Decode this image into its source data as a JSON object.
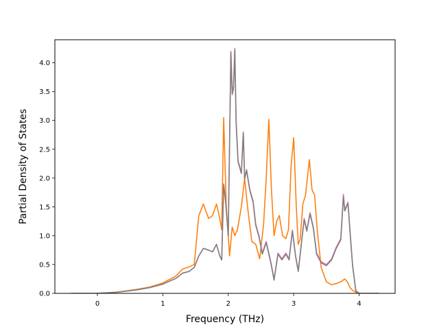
{
  "chart_data": {
    "type": "line",
    "title": "",
    "xlabel": "Frequency (THz)",
    "ylabel": "Partial Density of States",
    "xlim": [
      -0.65,
      4.55
    ],
    "ylim": [
      0,
      4.4
    ],
    "xticks": [
      0,
      1,
      2,
      3,
      4
    ],
    "yticks": [
      0.0,
      0.5,
      1.0,
      1.5,
      2.0,
      2.5,
      3.0,
      3.5,
      4.0
    ],
    "xtick_labels": [
      "0",
      "1",
      "2",
      "3",
      "4"
    ],
    "ytick_labels": [
      "0.0",
      "0.5",
      "1.0",
      "1.5",
      "2.0",
      "2.5",
      "3.0",
      "3.5",
      "4.0"
    ],
    "grid": false,
    "legend": "none",
    "series": [
      {
        "color": "#e377c2",
        "x": [
          -0.4,
          0.0,
          0.3,
          0.6,
          0.8,
          1.0,
          1.2,
          1.3,
          1.4,
          1.48,
          1.55,
          1.62,
          1.7,
          1.76,
          1.82,
          1.87,
          1.9,
          1.93,
          1.96,
          2.0,
          2.04,
          2.06,
          2.08,
          2.1,
          2.12,
          2.15,
          2.2,
          2.23,
          2.25,
          2.28,
          2.33,
          2.38,
          2.42,
          2.47,
          2.52,
          2.58,
          2.65,
          2.7,
          2.76,
          2.82,
          2.88,
          2.93,
          2.98,
          3.03,
          3.07,
          3.12,
          3.16,
          3.2,
          3.25,
          3.3,
          3.35,
          3.42,
          3.5,
          3.58,
          3.65,
          3.72,
          3.76,
          3.78,
          3.8,
          3.83,
          3.86,
          3.9,
          3.95,
          4.0,
          4.3
        ],
        "y": [
          0.0,
          0.0,
          0.02,
          0.06,
          0.1,
          0.16,
          0.26,
          0.35,
          0.38,
          0.45,
          0.65,
          0.78,
          0.75,
          0.72,
          0.85,
          0.65,
          0.58,
          1.9,
          1.6,
          1.0,
          4.2,
          3.5,
          3.6,
          4.25,
          3.0,
          2.3,
          2.1,
          2.8,
          2.0,
          2.15,
          1.8,
          1.6,
          1.2,
          1.0,
          0.7,
          0.9,
          0.55,
          0.25,
          0.7,
          0.6,
          0.7,
          0.6,
          1.1,
          0.65,
          0.4,
          0.9,
          1.3,
          1.1,
          1.4,
          1.15,
          0.7,
          0.55,
          0.5,
          0.6,
          0.8,
          0.95,
          1.72,
          1.45,
          1.5,
          1.58,
          1.1,
          0.5,
          0.05,
          0.0,
          0.0
        ]
      },
      {
        "color": "#ff7f0e",
        "x": [
          -0.4,
          0.0,
          0.3,
          0.6,
          0.8,
          1.0,
          1.2,
          1.3,
          1.4,
          1.48,
          1.55,
          1.62,
          1.66,
          1.7,
          1.76,
          1.82,
          1.87,
          1.9,
          1.93,
          1.97,
          2.02,
          2.06,
          2.1,
          2.14,
          2.2,
          2.25,
          2.3,
          2.36,
          2.42,
          2.48,
          2.54,
          2.58,
          2.62,
          2.66,
          2.7,
          2.74,
          2.78,
          2.83,
          2.88,
          2.92,
          2.96,
          3.0,
          3.04,
          3.07,
          3.1,
          3.14,
          3.18,
          3.24,
          3.28,
          3.32,
          3.36,
          3.42,
          3.5,
          3.58,
          3.65,
          3.72,
          3.78,
          3.82,
          3.86,
          3.9,
          3.95,
          4.0,
          4.3
        ],
        "y": [
          0.0,
          0.0,
          0.02,
          0.07,
          0.11,
          0.18,
          0.3,
          0.42,
          0.46,
          0.5,
          1.35,
          1.55,
          1.42,
          1.3,
          1.35,
          1.55,
          1.3,
          1.1,
          3.05,
          1.5,
          0.65,
          1.15,
          1.0,
          1.1,
          1.5,
          2.0,
          1.45,
          0.9,
          0.85,
          0.6,
          1.2,
          2.0,
          3.02,
          1.8,
          1.0,
          1.25,
          1.35,
          1.0,
          0.95,
          1.1,
          2.2,
          2.7,
          1.5,
          0.85,
          0.95,
          1.55,
          1.7,
          2.32,
          1.8,
          1.7,
          1.1,
          0.45,
          0.2,
          0.15,
          0.17,
          0.2,
          0.25,
          0.2,
          0.1,
          0.05,
          0.02,
          0.0,
          0.0
        ]
      },
      {
        "color": "#7f7f7f",
        "x": [
          -0.4,
          0.0,
          0.3,
          0.6,
          0.8,
          1.0,
          1.2,
          1.3,
          1.4,
          1.48,
          1.55,
          1.62,
          1.7,
          1.76,
          1.82,
          1.87,
          1.9,
          1.93,
          1.96,
          2.0,
          2.04,
          2.06,
          2.08,
          2.1,
          2.12,
          2.15,
          2.2,
          2.23,
          2.25,
          2.28,
          2.33,
          2.38,
          2.42,
          2.47,
          2.52,
          2.58,
          2.65,
          2.7,
          2.76,
          2.82,
          2.88,
          2.93,
          2.98,
          3.03,
          3.07,
          3.12,
          3.16,
          3.2,
          3.25,
          3.3,
          3.35,
          3.42,
          3.5,
          3.58,
          3.65,
          3.72,
          3.76,
          3.78,
          3.8,
          3.83,
          3.86,
          3.9,
          3.95,
          4.0,
          4.3
        ],
        "y": [
          0.0,
          0.0,
          0.02,
          0.06,
          0.1,
          0.16,
          0.26,
          0.35,
          0.38,
          0.45,
          0.65,
          0.78,
          0.75,
          0.72,
          0.85,
          0.65,
          0.58,
          1.88,
          1.58,
          1.0,
          4.18,
          3.45,
          3.55,
          4.23,
          2.95,
          2.28,
          2.08,
          2.78,
          1.98,
          2.13,
          1.78,
          1.58,
          1.18,
          0.98,
          0.68,
          0.88,
          0.53,
          0.23,
          0.68,
          0.58,
          0.68,
          0.58,
          1.08,
          0.63,
          0.38,
          0.88,
          1.28,
          1.08,
          1.38,
          1.13,
          0.68,
          0.53,
          0.48,
          0.58,
          0.78,
          0.93,
          1.68,
          1.43,
          1.48,
          1.56,
          1.08,
          0.48,
          0.04,
          0.0,
          0.0
        ]
      }
    ]
  }
}
